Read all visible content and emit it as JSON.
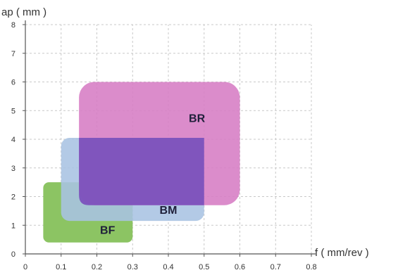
{
  "chart_data": {
    "type": "area",
    "title": "",
    "xlabel": "f ( mm/rev )",
    "ylabel": "ap ( mm )",
    "xlim": [
      0,
      0.8
    ],
    "ylim": [
      0,
      8
    ],
    "x_ticks": [
      "0",
      "0.1",
      "0.2",
      "0.3",
      "0.4",
      "0.5",
      "0.6",
      "0.7",
      "0.8"
    ],
    "y_ticks": [
      "0",
      "1",
      "2",
      "3",
      "4",
      "5",
      "6",
      "7",
      "8"
    ],
    "grid": true,
    "regions": [
      {
        "name": "BF",
        "x": [
          0.05,
          0.3
        ],
        "y": [
          0.4,
          2.5
        ],
        "color": "#8cc463",
        "label_at": [
          0.23,
          0.7
        ]
      },
      {
        "name": "BM",
        "x": [
          0.1,
          0.5
        ],
        "y": [
          1.15,
          4.05
        ],
        "color": "#a9c3e3",
        "label_at": [
          0.4,
          1.4
        ]
      },
      {
        "name": "BR",
        "x": [
          0.15,
          0.6
        ],
        "y": [
          1.7,
          6.0
        ],
        "color": "#d67cc4",
        "label_at": [
          0.48,
          4.6
        ]
      }
    ],
    "overlap_color": "#7b52bd"
  }
}
